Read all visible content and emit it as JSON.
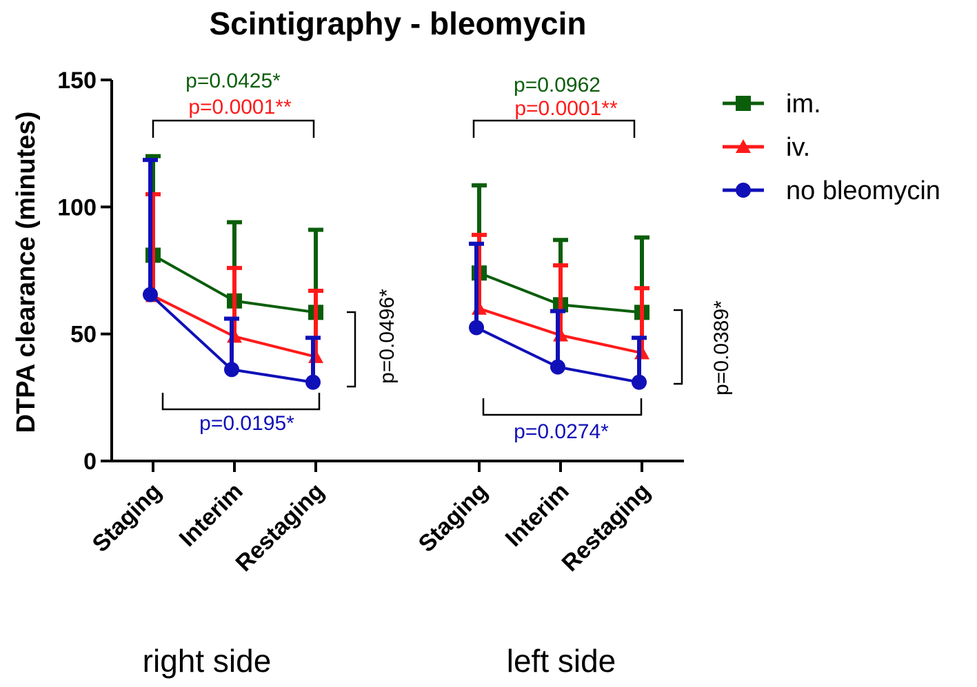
{
  "chart_data": {
    "type": "line",
    "title": "Scintigraphy - bleomycin",
    "ylabel": "DTPA clearance (minutes)",
    "ylim": [
      0,
      150
    ],
    "yticks": [
      0,
      50,
      100,
      150
    ],
    "groups": [
      {
        "label": "right side",
        "categories": [
          "Staging",
          "Interim",
          "Restaging"
        ]
      },
      {
        "label": "left side",
        "categories": [
          "Staging",
          "Interim",
          "Restaging"
        ]
      }
    ],
    "series": [
      {
        "name": "im.",
        "color": "#0a5e0a",
        "marker": "square",
        "values": [
          [
            81,
            63,
            58.5
          ],
          [
            74,
            61.5,
            58.5
          ]
        ],
        "errors": [
          [
            39,
            31,
            32.5
          ],
          [
            34.5,
            25.5,
            29.5
          ]
        ]
      },
      {
        "name": "iv.",
        "color": "#ff1a1a",
        "marker": "triangle",
        "values": [
          [
            65,
            49,
            41
          ],
          [
            60,
            49.5,
            42.5
          ]
        ],
        "errors": [
          [
            40,
            27,
            26
          ],
          [
            29,
            27.5,
            25.5
          ]
        ]
      },
      {
        "name": "no bleomycin",
        "color": "#1010b8",
        "marker": "circle",
        "values": [
          [
            65.5,
            36,
            31
          ],
          [
            52.5,
            37,
            31
          ]
        ],
        "errors": [
          [
            53,
            20,
            17.5
          ],
          [
            33,
            22,
            17.5
          ]
        ]
      }
    ],
    "legend_position": "right",
    "annotations": {
      "right_top_green": "p=0.0425*",
      "right_top_red": "p=0.0001**",
      "right_bottom_blue": "p=0.0195*",
      "right_side_black": "p=0.0496*",
      "left_top_green": "p=0.0962",
      "left_top_red": "p=0.0001**",
      "left_bottom_blue": "p=0.0274*",
      "left_side_black": "p=0.0389*"
    }
  }
}
